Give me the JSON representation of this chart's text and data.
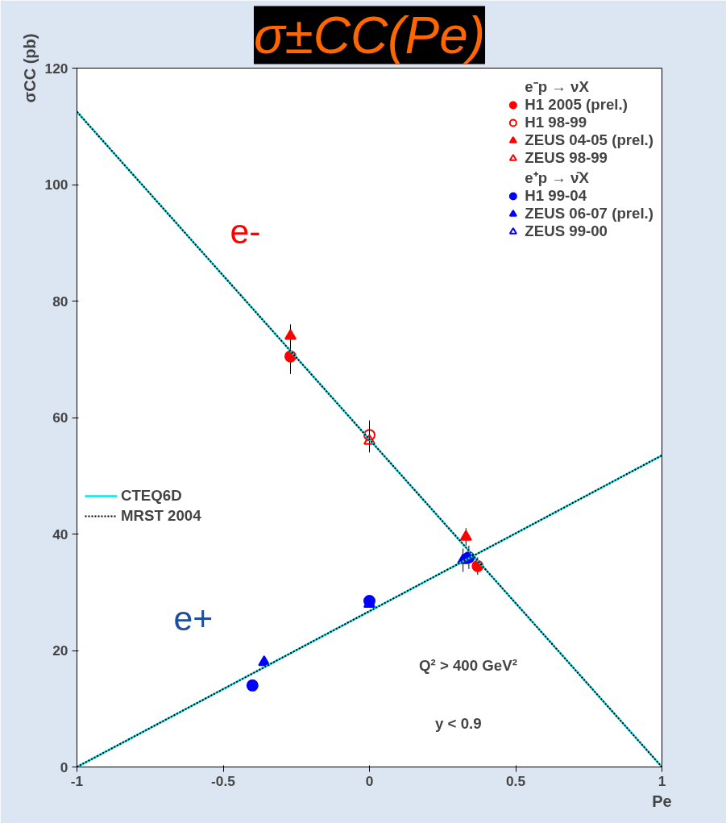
{
  "chart_data": {
    "type": "scatter",
    "title": "σ±CC(Pe)",
    "xlabel": "Pe",
    "ylabel": "σCC (pb)",
    "xlim": [
      -1,
      1
    ],
    "ylim": [
      0,
      120
    ],
    "xticks": [
      -1,
      -0.5,
      0,
      0.5,
      1
    ],
    "yticks": [
      0,
      20,
      40,
      60,
      80,
      100,
      120
    ],
    "grid": false,
    "legend": "top right",
    "annotations": [
      "e-",
      "e+",
      "e⁻p → νX",
      "e⁺p → ν̄X",
      "Q² > 400 GeV²",
      "y < 0.9"
    ],
    "series": [
      {
        "name": "H1 2005 (prel.)",
        "color": "#ff0000",
        "marker": "circle",
        "x": [
          -0.27,
          0.37
        ],
        "values": [
          70.5,
          34.5
        ],
        "errors": [
          3,
          1.5
        ]
      },
      {
        "name": "H1 98-99",
        "color": "#ff0000",
        "marker": "circle_open",
        "x": [
          0
        ],
        "values": [
          57
        ],
        "errors": [
          2.5
        ]
      },
      {
        "name": "ZEUS 04-05 (prel.)",
        "color": "#ff0000",
        "marker": "triangle",
        "x": [
          -0.27,
          0.33
        ],
        "values": [
          74,
          39.5
        ],
        "errors": [
          2,
          1.5
        ]
      },
      {
        "name": "ZEUS 98-99",
        "color": "#ff0000",
        "marker": "triangle_open",
        "x": [
          0
        ],
        "values": [
          56
        ],
        "errors": [
          2
        ]
      },
      {
        "name": "H1 99-04",
        "color": "#0000ff",
        "marker": "circle",
        "x": [
          -0.4,
          0,
          0.34
        ],
        "values": [
          14,
          28.5,
          36
        ],
        "errors": [
          null,
          null,
          2
        ]
      },
      {
        "name": "ZEUS 06-07 (prel.)",
        "color": "#0000ff",
        "marker": "triangle",
        "x": [
          -0.36,
          0.32
        ],
        "values": [
          18,
          35.5
        ],
        "errors": [
          null,
          2
        ]
      },
      {
        "name": "ZEUS 99-00",
        "color": "#0000ff",
        "marker": "triangle_open",
        "x": [
          0
        ],
        "values": [
          28
        ]
      },
      {
        "name": "CTEQ6D",
        "type": "line",
        "color": "#00e5ee",
        "line_style": "solid",
        "x": [
          -1,
          1
        ],
        "values": [
          112.5,
          0
        ]
      },
      {
        "type": "line",
        "color": "#00e5ee",
        "line_style": "solid",
        "x": [
          -1,
          1
        ],
        "values": [
          0,
          53.5
        ]
      },
      {
        "name": "MRST 2004",
        "type": "line",
        "color": "#000000",
        "line_style": "dotted",
        "x": [
          -1,
          1
        ],
        "values": [
          112.5,
          0
        ]
      },
      {
        "type": "line",
        "color": "#000000",
        "line_style": "dotted",
        "x": [
          -1,
          1
        ],
        "values": [
          0,
          53.5
        ]
      }
    ]
  }
}
